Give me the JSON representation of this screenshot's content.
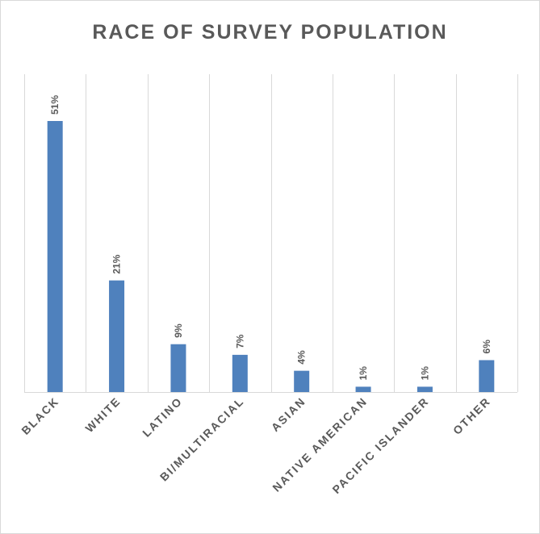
{
  "chart_data": {
    "type": "bar",
    "title": "RACE OF SURVEY POPULATION",
    "categories": [
      "BLACK",
      "WHITE",
      "LATINO",
      "BI/MULTIRACIAL",
      "ASIAN",
      "NATIVE AMERICAN",
      "PACIFIC ISLANDER",
      "OTHER"
    ],
    "values": [
      51,
      21,
      9,
      7,
      4,
      1,
      1,
      6
    ],
    "value_labels": [
      "51%",
      "21%",
      "9%",
      "7%",
      "4%",
      "1%",
      "1%",
      "6%"
    ],
    "unit": "%",
    "ylim": [
      0,
      55
    ],
    "grid": "vertical category separators",
    "legend": "none",
    "bar_color": "#4f81bd",
    "text_color": "#595959",
    "grid_color": "#d9d9d9"
  }
}
